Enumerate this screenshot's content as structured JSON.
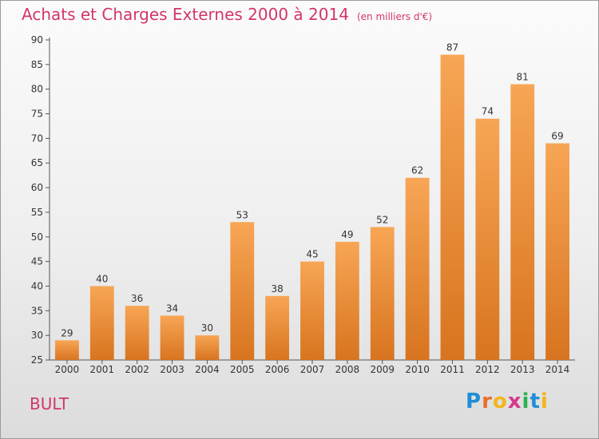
{
  "header": {
    "title": "Achats et Charges Externes 2000 à 2014",
    "unit": "(en milliers d'€)"
  },
  "footer": {
    "place": "BULT",
    "logo": {
      "letters": [
        "P",
        "r",
        "o",
        "x",
        "i",
        "t",
        "i"
      ],
      "colors": [
        "#1f8ed6",
        "#e8702a",
        "#f2b51c",
        "#d43a8a",
        "#2bb24c",
        "#1f8ed6",
        "#f2b51c"
      ]
    }
  },
  "chart_data": {
    "type": "bar",
    "title": "Achats et Charges Externes 2000 à 2014",
    "subtitle": "(en milliers d'€)",
    "xlabel": "",
    "ylabel": "",
    "categories": [
      "2000",
      "2001",
      "2002",
      "2003",
      "2004",
      "2005",
      "2006",
      "2007",
      "2008",
      "2009",
      "2010",
      "2011",
      "2012",
      "2013",
      "2014"
    ],
    "values": [
      29,
      40,
      36,
      34,
      30,
      53,
      38,
      45,
      49,
      52,
      62,
      87,
      74,
      81,
      69
    ],
    "data_labels": [
      "29",
      "40",
      "36",
      "34",
      "30",
      "53",
      "38",
      "45",
      "49",
      "52",
      "62",
      "87",
      "74",
      "81",
      "69"
    ],
    "ylim": [
      25,
      90
    ],
    "yticks": [
      25,
      30,
      35,
      40,
      45,
      50,
      55,
      60,
      65,
      70,
      75,
      80,
      85,
      90
    ],
    "grid": false,
    "legend": "none",
    "colors": {
      "bar_top": "#f7a655",
      "bar_bottom": "#d8741f",
      "title": "#d2366a"
    }
  }
}
